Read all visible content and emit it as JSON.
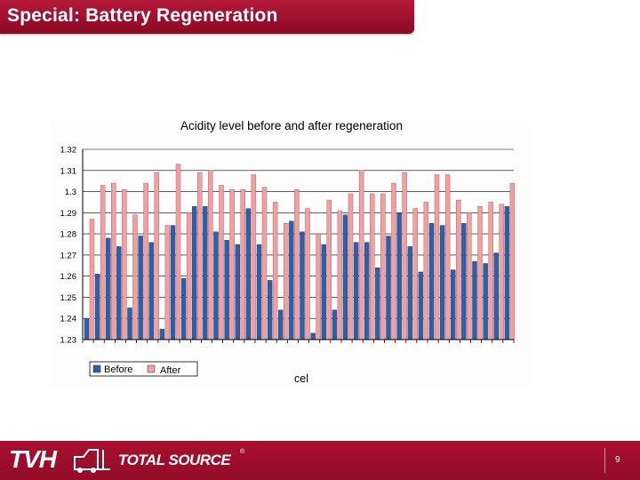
{
  "slide": {
    "title": "Special: Battery Regeneration",
    "page_number": "9"
  },
  "footer": {
    "logo_tvh": "TVH",
    "logo_total_source": "TOTAL SOURCE",
    "logo_registered": "®"
  },
  "chart_data": {
    "type": "bar",
    "title": "Acidity level before and after regeneration",
    "xlabel": "cel",
    "ylabel": "",
    "ylim": [
      1.23,
      1.32
    ],
    "y_ticks": [
      "1.32",
      "1.31",
      "1.3",
      "1.29",
      "1.28",
      "1.27",
      "1.26",
      "1.25",
      "1.24",
      "1.23"
    ],
    "grid": true,
    "legend_position": "bottom-left",
    "series": [
      {
        "name": "Before",
        "color": "#2e5fa8",
        "values": [
          1.24,
          1.261,
          1.278,
          1.274,
          1.245,
          1.279,
          1.276,
          1.235,
          1.284,
          1.259,
          1.293,
          1.293,
          1.281,
          1.277,
          1.275,
          1.292,
          1.275,
          1.258,
          1.244,
          1.286,
          1.281,
          1.233,
          1.275,
          1.244,
          1.289,
          1.276,
          1.276,
          1.264,
          1.279,
          1.29,
          1.274,
          1.262,
          1.285,
          1.284,
          1.263,
          1.285,
          1.267,
          1.266,
          1.271,
          1.293
        ]
      },
      {
        "name": "After",
        "color": "#f0a0a0",
        "values": [
          1.287,
          1.303,
          1.304,
          1.301,
          1.289,
          1.304,
          1.309,
          1.284,
          1.313,
          1.29,
          1.309,
          1.31,
          1.303,
          1.301,
          1.301,
          1.308,
          1.302,
          1.295,
          1.285,
          1.301,
          1.292,
          1.28,
          1.296,
          1.291,
          1.299,
          1.31,
          1.299,
          1.299,
          1.304,
          1.309,
          1.292,
          1.295,
          1.308,
          1.308,
          1.296,
          1.29,
          1.293,
          1.295,
          1.294,
          1.304
        ]
      }
    ]
  }
}
